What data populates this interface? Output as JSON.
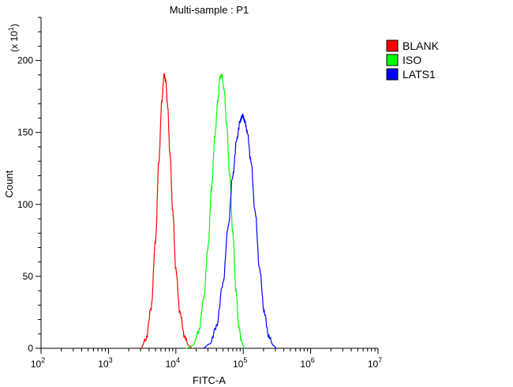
{
  "chart_data": {
    "type": "line",
    "title": "Multi-sample : P1",
    "xlabel": "FITC-A",
    "ylabel": "Count",
    "y_multiplier_label": "(x 10^1)",
    "x_scale": "log",
    "xlim": [
      100,
      10000000
    ],
    "ylim": [
      0,
      230
    ],
    "x_ticks": [
      {
        "value": 100,
        "base": "10",
        "exp": "2"
      },
      {
        "value": 1000,
        "base": "10",
        "exp": "3"
      },
      {
        "value": 10000,
        "base": "10",
        "exp": "4"
      },
      {
        "value": 100000,
        "base": "10",
        "exp": "5"
      },
      {
        "value": 1000000,
        "base": "10",
        "exp": "6"
      },
      {
        "value": 10000000,
        "base": "10",
        "exp": "7"
      }
    ],
    "y_ticks": [
      0,
      50,
      100,
      150,
      200
    ],
    "grid": false,
    "legend_position": "top-right",
    "series": [
      {
        "name": "BLANK",
        "color": "#ff0000",
        "x": [
          3000,
          3600,
          4300,
          5000,
          5600,
          6200,
          6700,
          7100,
          7500,
          8200,
          9000,
          10000,
          11500,
          13500,
          15500,
          17500
        ],
        "y": [
          0,
          6,
          28,
          75,
          130,
          172,
          190,
          186,
          170,
          135,
          95,
          55,
          25,
          8,
          2,
          0
        ]
      },
      {
        "name": "ISO",
        "color": "#00ff00",
        "x": [
          14000,
          18000,
          22000,
          26000,
          30000,
          34000,
          38000,
          42000,
          45000,
          48000,
          52000,
          57000,
          63000,
          70000,
          78000,
          86000,
          95000,
          105000
        ],
        "y": [
          0,
          2,
          12,
          35,
          70,
          112,
          148,
          172,
          188,
          190,
          180,
          155,
          120,
          80,
          40,
          15,
          4,
          0
        ]
      },
      {
        "name": "LATS1",
        "color": "#0000ff",
        "x": [
          25000,
          32000,
          40000,
          50000,
          60000,
          70000,
          80000,
          90000,
          98000,
          105000,
          115000,
          130000,
          150000,
          175000,
          205000,
          240000,
          280000,
          310000
        ],
        "y": [
          0,
          3,
          15,
          45,
          85,
          120,
          145,
          158,
          162,
          158,
          150,
          130,
          95,
          55,
          25,
          8,
          2,
          0
        ]
      }
    ]
  }
}
